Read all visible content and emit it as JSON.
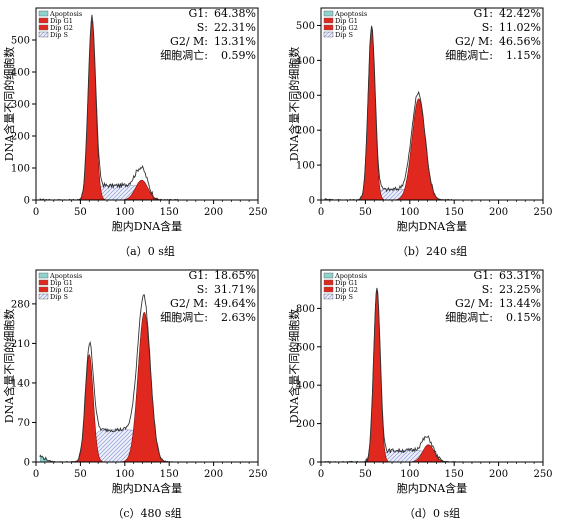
{
  "chart_data": [
    {
      "type": "area",
      "caption": "（a）0 s组",
      "xlabel": "胞内DNA含量",
      "ylabel": "DNA含量不同的细胞数",
      "xlim": [
        0,
        250
      ],
      "ylim": [
        0,
        600
      ],
      "xticks": [
        0,
        50,
        100,
        150,
        200,
        250
      ],
      "yticks": [
        0,
        100,
        200,
        300,
        400,
        500
      ],
      "legend": [
        "Apoptosis",
        "Dip G1",
        "Dip G2",
        "Dip S"
      ],
      "stats": [
        {
          "label": "G1:",
          "value": "64.38%"
        },
        {
          "label": "S:",
          "value": "22.31%"
        },
        {
          "label": "G2/ M:",
          "value": "13.31%"
        },
        {
          "label": "细胞凋亡:",
          "value": "0.59%"
        }
      ],
      "series": [
        {
          "name": "Dip G1",
          "peak_x": 63,
          "peak_y": 560,
          "sd": 4.2
        },
        {
          "name": "Dip G2",
          "peak_x": 119,
          "peak_y": 62,
          "sd": 7
        },
        {
          "name": "Dip S",
          "plateau_y": 45,
          "from_x": 66,
          "to_x": 125
        },
        {
          "name": "Apoptosis",
          "plateau_y": 2,
          "from_x": 10,
          "to_x": 55
        }
      ]
    },
    {
      "type": "area",
      "caption": "（b）240 s组",
      "xlabel": "胞内DNA含量",
      "ylabel": "DNA含量不同的细胞数",
      "xlim": [
        0,
        250
      ],
      "ylim": [
        0,
        550
      ],
      "xticks": [
        0,
        50,
        100,
        150,
        200,
        250
      ],
      "yticks": [
        0,
        100,
        200,
        300,
        400,
        500
      ],
      "legend": [
        "Apoptosis",
        "Dip G1",
        "Dip G2",
        "Dip S"
      ],
      "stats": [
        {
          "label": "G1:",
          "value": "42.42%"
        },
        {
          "label": "S:",
          "value": "11.02%"
        },
        {
          "label": "G2/ M:",
          "value": "46.56%"
        },
        {
          "label": "细胞凋亡:",
          "value": "1.15%"
        }
      ],
      "series": [
        {
          "name": "Dip G1",
          "peak_x": 57,
          "peak_y": 490,
          "sd": 4
        },
        {
          "name": "Dip G2",
          "peak_x": 110,
          "peak_y": 290,
          "sd": 7.5
        },
        {
          "name": "Dip S",
          "plateau_y": 30,
          "from_x": 60,
          "to_x": 110
        },
        {
          "name": "Apoptosis",
          "plateau_y": 3,
          "from_x": 10,
          "to_x": 52
        }
      ]
    },
    {
      "type": "area",
      "caption": "（c）480 s组",
      "xlabel": "胞内DNA含量",
      "ylabel": "DNA含量不同的细胞数",
      "xlim": [
        0,
        250
      ],
      "ylim": [
        0,
        340
      ],
      "xticks": [
        0,
        50,
        100,
        150,
        200,
        250
      ],
      "yticks": [
        0,
        70,
        140,
        210,
        280
      ],
      "legend": [
        "Apoptosis",
        "Dip G1",
        "Dip G2",
        "Dip S"
      ],
      "stats": [
        {
          "label": "G1:",
          "value": "18.65%"
        },
        {
          "label": "S:",
          "value": "31.71%"
        },
        {
          "label": "G2/ M:",
          "value": "49.64%"
        },
        {
          "label": "细胞凋亡:",
          "value": "2.63%"
        }
      ],
      "series": [
        {
          "name": "Dip G1",
          "peak_x": 60,
          "peak_y": 190,
          "sd": 4.5
        },
        {
          "name": "Dip G2",
          "peak_x": 122,
          "peak_y": 265,
          "sd": 7
        },
        {
          "name": "Dip S",
          "plateau_y": 57,
          "from_x": 62,
          "to_x": 122
        },
        {
          "name": "Apoptosis",
          "plateau_y": 12,
          "from_x": 10,
          "to_x": 50
        }
      ]
    },
    {
      "type": "area",
      "caption": "（d）0 s组",
      "xlabel": "胞内DNA含量",
      "ylabel": "DNA含量不同的细胞数",
      "xlim": [
        0,
        250
      ],
      "ylim": [
        0,
        1000
      ],
      "xticks": [
        0,
        50,
        100,
        150,
        200,
        250
      ],
      "yticks": [
        0,
        200,
        400,
        600,
        800
      ],
      "legend": [
        "Apoptosis",
        "Dip G1",
        "Dip G2",
        "Dip S"
      ],
      "stats": [
        {
          "label": "G1:",
          "value": "63.31%"
        },
        {
          "label": "S:",
          "value": "23.25%"
        },
        {
          "label": "G2/ M:",
          "value": "13.44%"
        },
        {
          "label": "细胞凋亡:",
          "value": "0.15%"
        }
      ],
      "series": [
        {
          "name": "Dip G1",
          "peak_x": 63,
          "peak_y": 890,
          "sd": 3.8
        },
        {
          "name": "Dip G2",
          "peak_x": 121,
          "peak_y": 90,
          "sd": 6.5
        },
        {
          "name": "Dip S",
          "plateau_y": 60,
          "from_x": 68,
          "to_x": 122
        },
        {
          "name": "Apoptosis",
          "plateau_y": 1,
          "from_x": 10,
          "to_x": 55
        }
      ]
    }
  ],
  "colors": {
    "g1": "#e0281f",
    "g2": "#e0281f",
    "s_hatch": "#8e9ad2",
    "apoptosis": "#8fd3cf",
    "outline": "#000000"
  }
}
